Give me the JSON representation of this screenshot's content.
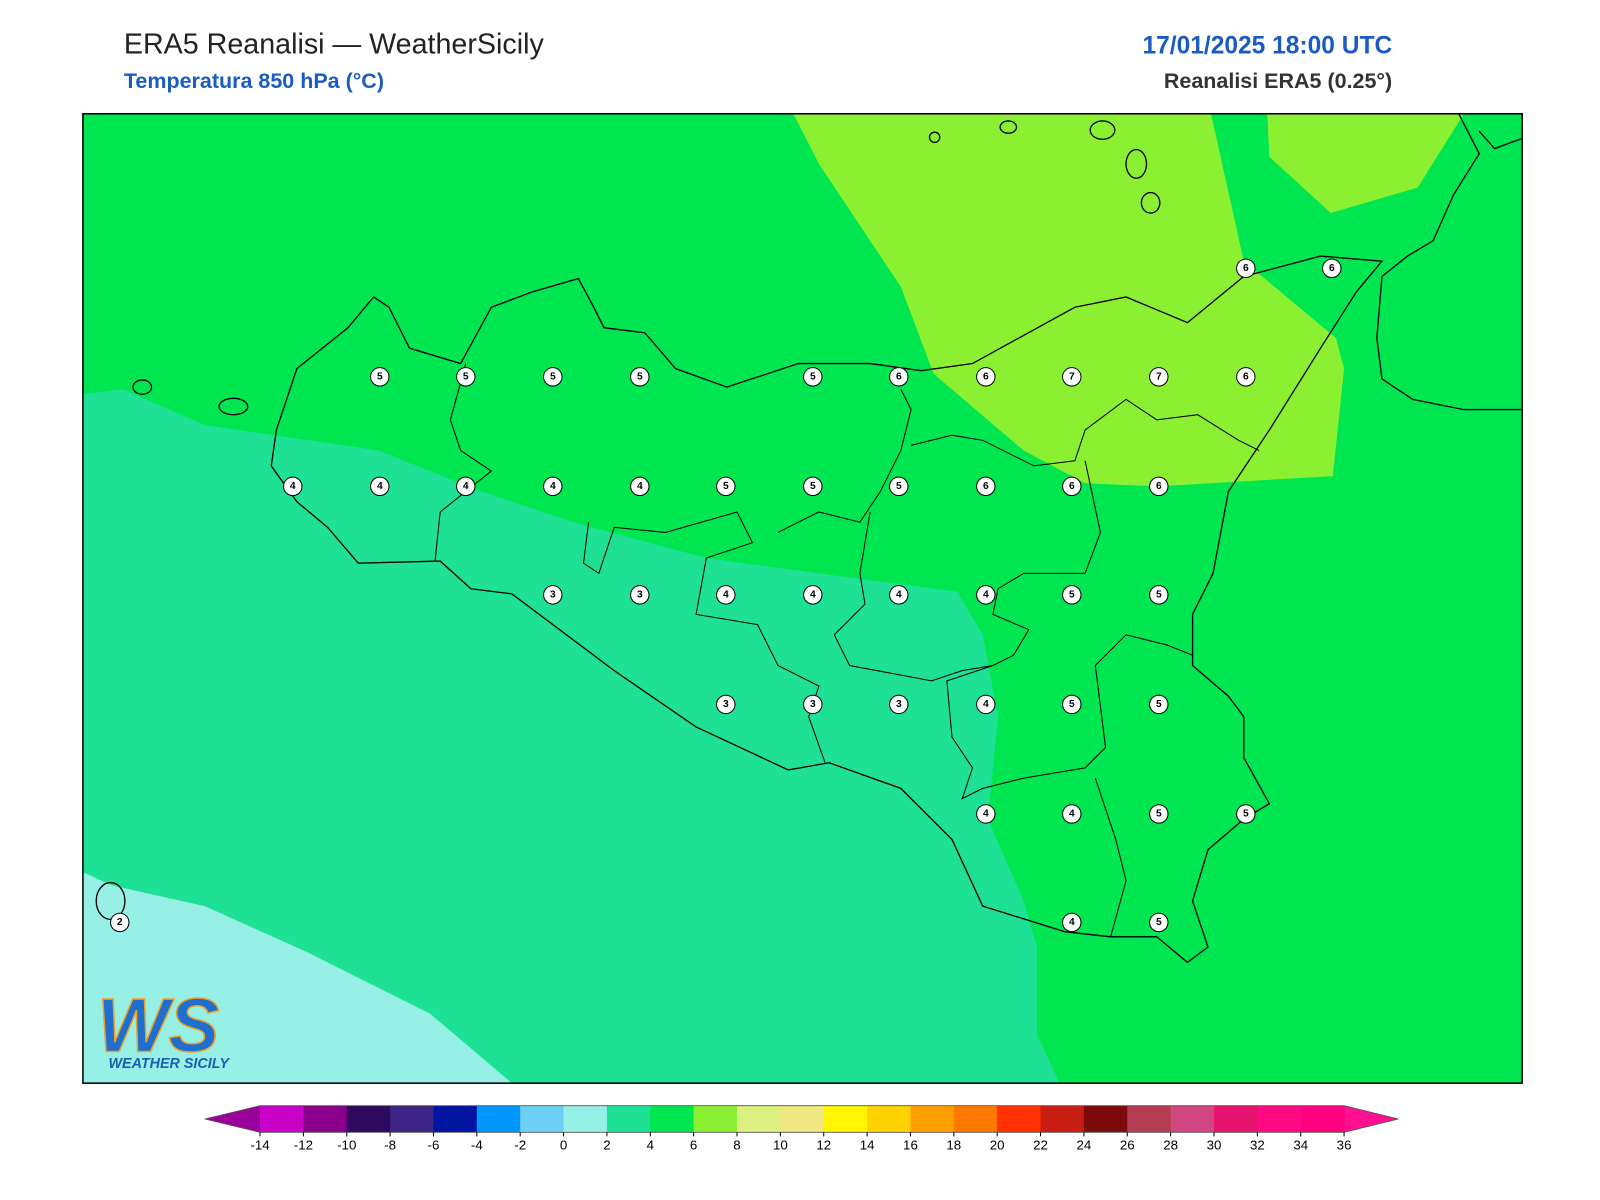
{
  "header": {
    "title": "ERA5 Reanalisi — WeatherSicily",
    "subtitle": "Temperatura 850 hPa (°C)",
    "datetime": "17/01/2025 18:00 UTC",
    "source": "Reanalisi ERA5 (0.25°)"
  },
  "map": {
    "point_values": [
      6,
      6,
      5,
      5,
      5,
      5,
      5,
      6,
      6,
      7,
      7,
      6,
      4,
      4,
      4,
      4,
      4,
      5,
      5,
      5,
      6,
      6,
      6,
      3,
      3,
      4,
      4,
      4,
      4,
      5,
      5,
      3,
      3,
      3,
      4,
      5,
      5,
      4,
      4,
      5,
      5,
      2,
      4,
      5
    ]
  },
  "colorbar": {
    "ticks": [
      -14,
      -12,
      -10,
      -8,
      -6,
      -4,
      -2,
      0,
      2,
      4,
      6,
      8,
      10,
      12,
      14,
      16,
      18,
      20,
      22,
      24,
      26,
      28,
      30,
      32,
      34,
      36
    ],
    "colors": [
      "#c800c8",
      "#8b008b",
      "#2e0a5e",
      "#3c2585",
      "#0014a0",
      "#0096ff",
      "#6ecff5",
      "#96f0e6",
      "#1ee196",
      "#00e650",
      "#8cf032",
      "#dcf082",
      "#f0e682",
      "#fff500",
      "#ffd200",
      "#ffa000",
      "#ff7800",
      "#ff3200",
      "#c81e14",
      "#7d0a0a",
      "#b43c50",
      "#d24682",
      "#e6146e",
      "#ff0a82",
      "#ff0080"
    ],
    "extend_colors": [
      "#9a009a",
      "#ff1090"
    ]
  },
  "logo": {
    "mark": "WS",
    "name": "WEATHER SICILY"
  }
}
